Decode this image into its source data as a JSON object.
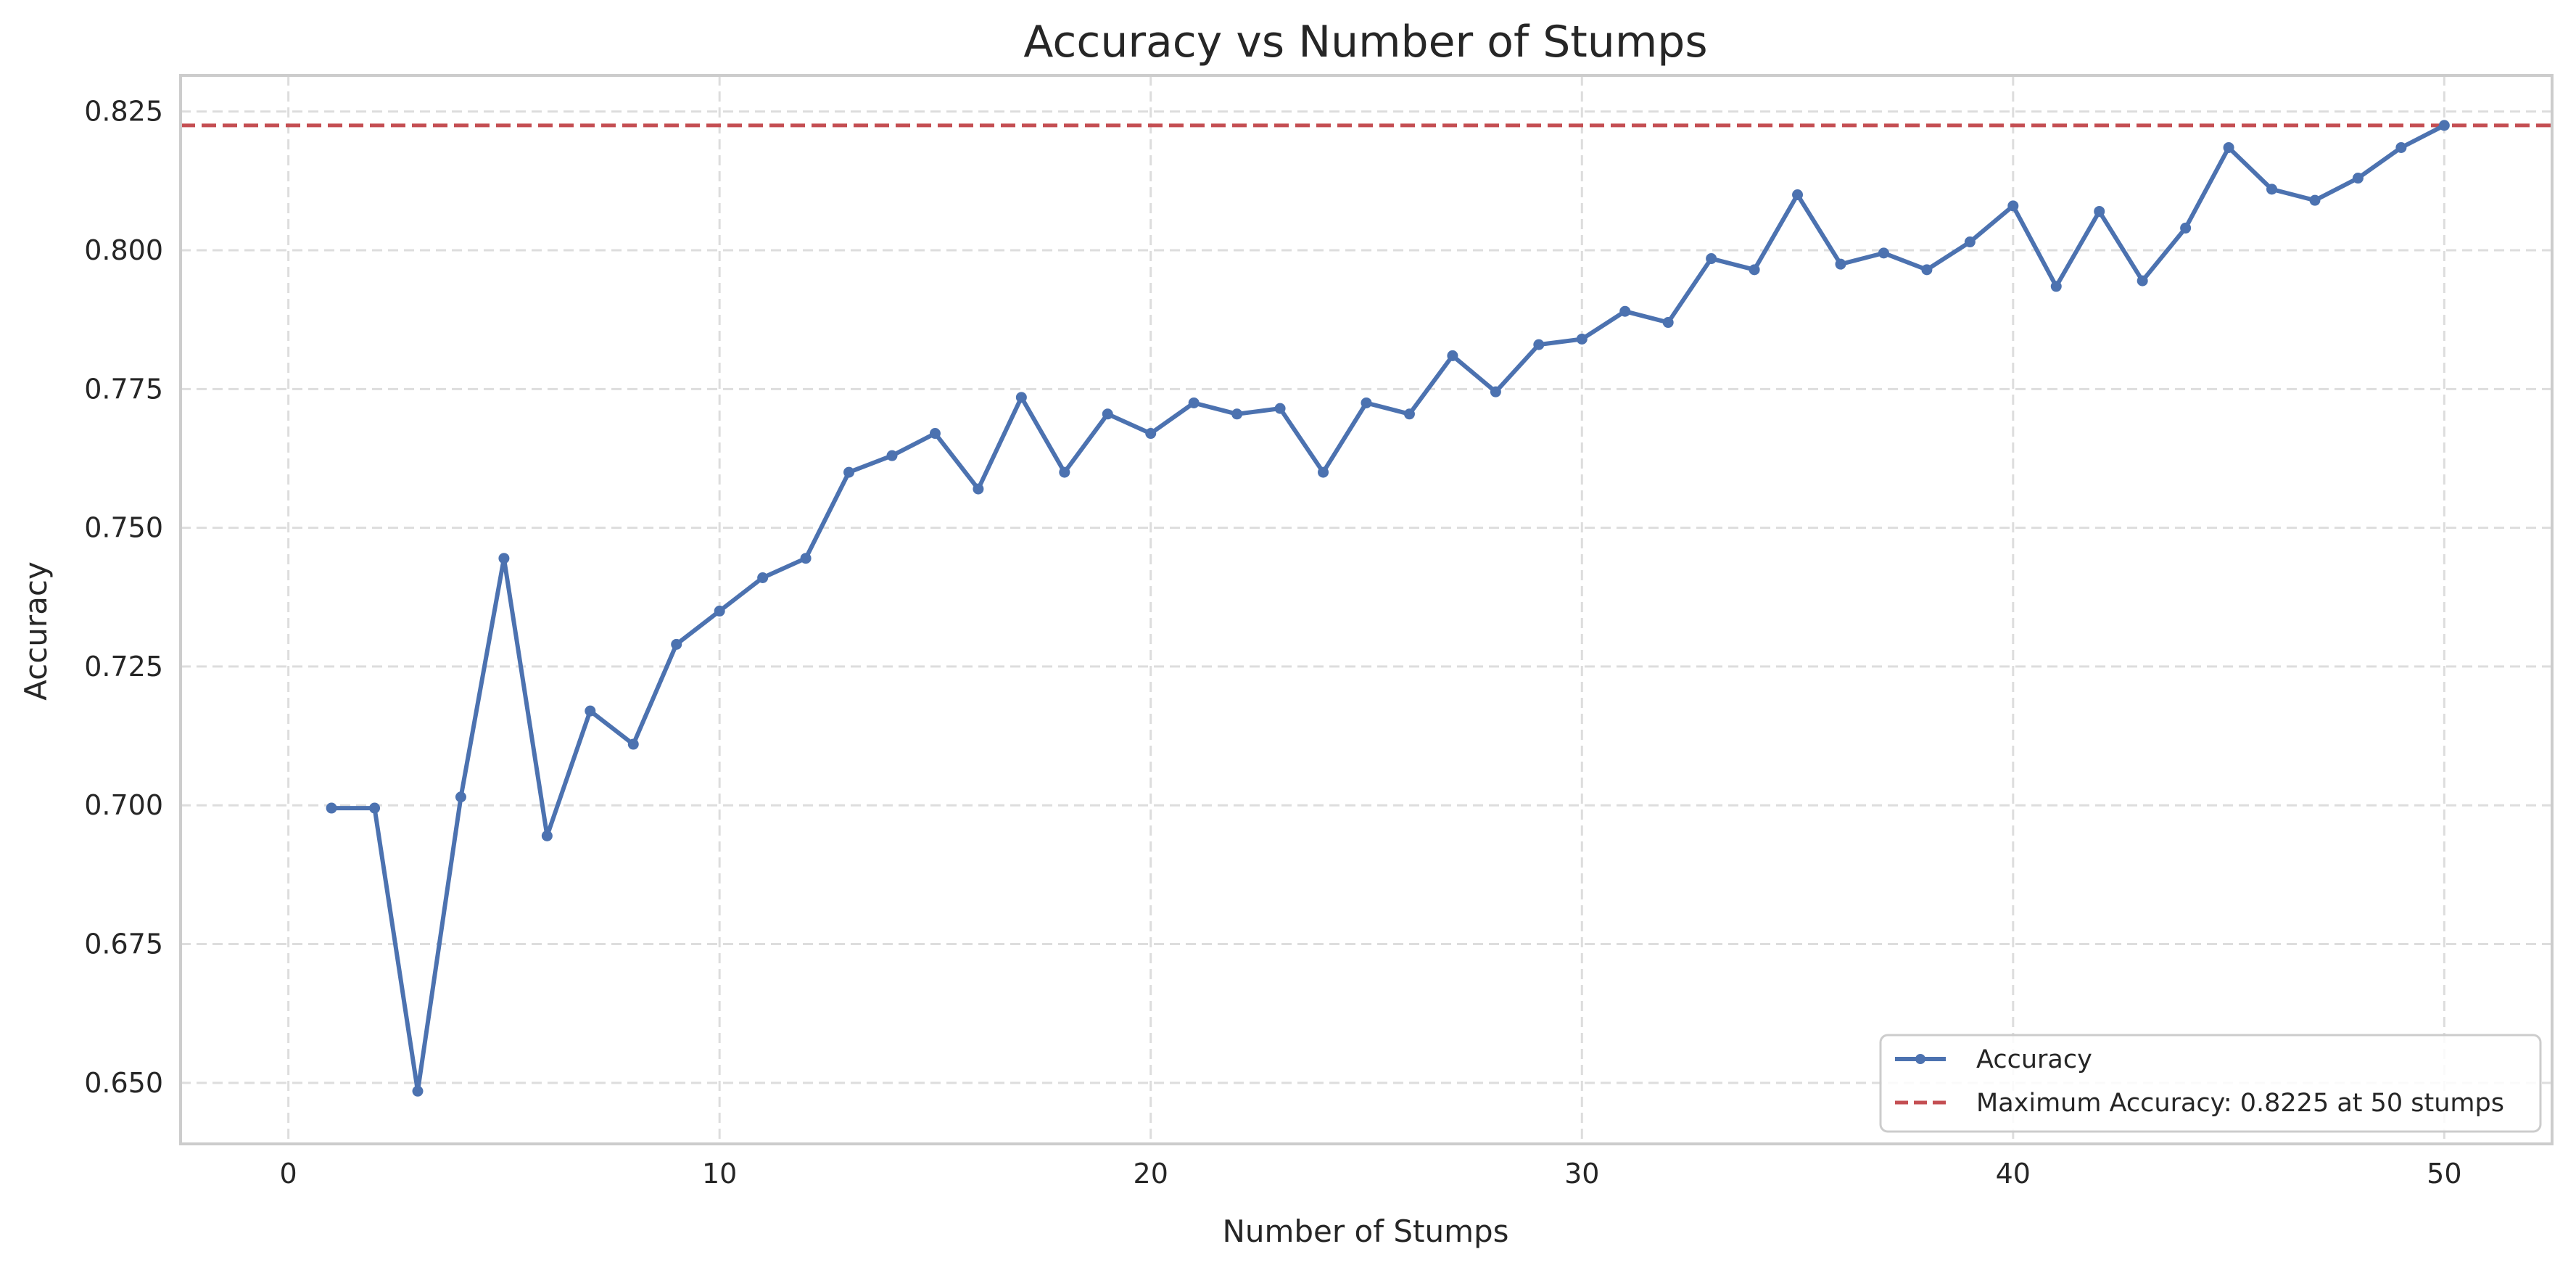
{
  "chart_data": {
    "type": "line",
    "title": "Accuracy vs Number of Stumps",
    "xlabel": "Number of Stumps",
    "ylabel": "Accuracy",
    "xlim": [
      -2.5,
      52.5
    ],
    "ylim": [
      0.639,
      0.8315
    ],
    "xticks": [
      0,
      10,
      20,
      30,
      40,
      50
    ],
    "yticks": [
      0.65,
      0.675,
      0.7,
      0.725,
      0.75,
      0.775,
      0.8,
      0.825
    ],
    "ytick_labels": [
      "0.650",
      "0.675",
      "0.700",
      "0.725",
      "0.750",
      "0.775",
      "0.800",
      "0.825"
    ],
    "grid": true,
    "legend_position": "lower-right",
    "series": [
      {
        "name": "Accuracy",
        "color": "#4c72b0",
        "marker": "circle",
        "x": [
          1,
          2,
          3,
          4,
          5,
          6,
          7,
          8,
          9,
          10,
          11,
          12,
          13,
          14,
          15,
          16,
          17,
          18,
          19,
          20,
          21,
          22,
          23,
          24,
          25,
          26,
          27,
          28,
          29,
          30,
          31,
          32,
          33,
          34,
          35,
          36,
          37,
          38,
          39,
          40,
          41,
          42,
          43,
          44,
          45,
          46,
          47,
          48,
          49,
          50
        ],
        "y": [
          0.6995,
          0.6995,
          0.6485,
          0.7015,
          0.7445,
          0.6945,
          0.717,
          0.711,
          0.729,
          0.735,
          0.741,
          0.7445,
          0.76,
          0.763,
          0.767,
          0.757,
          0.7735,
          0.76,
          0.7705,
          0.767,
          0.7725,
          0.7705,
          0.7715,
          0.76,
          0.7725,
          0.7705,
          0.781,
          0.7745,
          0.783,
          0.784,
          0.789,
          0.787,
          0.7985,
          0.7965,
          0.81,
          0.7975,
          0.7995,
          0.7965,
          0.8015,
          0.808,
          0.7935,
          0.807,
          0.7945,
          0.804,
          0.8185,
          0.811,
          0.809,
          0.813,
          0.8185,
          0.8225
        ]
      }
    ],
    "reference_line": {
      "name": "Maximum Accuracy: 0.8225 at 50 stumps",
      "orientation": "horizontal",
      "y": 0.8225,
      "color": "#c44e52",
      "style": "dashed"
    }
  }
}
